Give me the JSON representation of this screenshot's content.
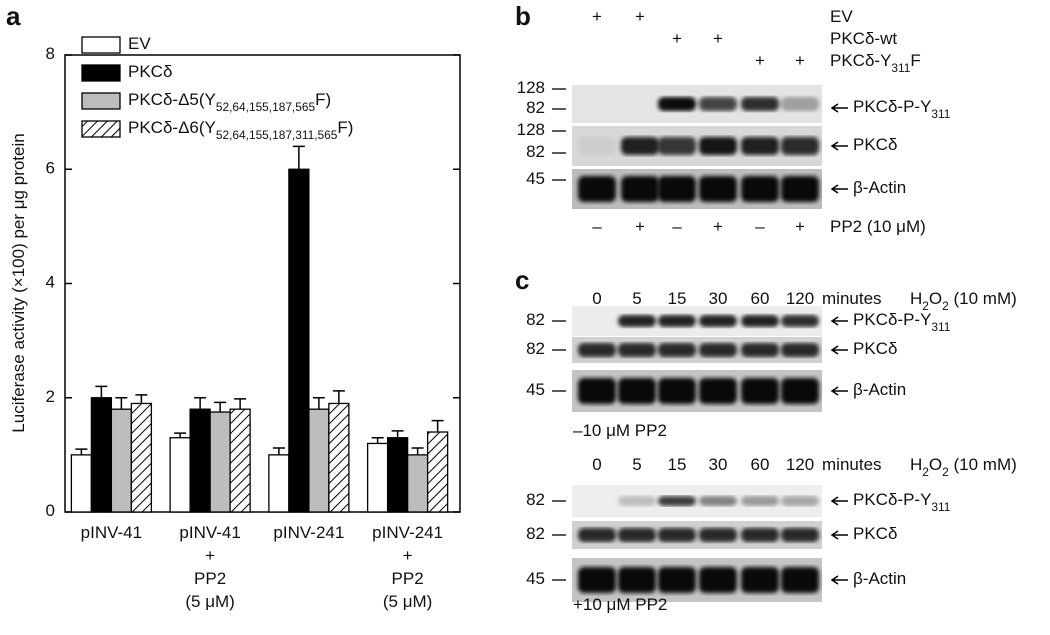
{
  "chart_data": {
    "type": "bar",
    "panel_label": "a",
    "ylabel": "Luciferase activity (×100) per μg protein",
    "categories": [
      "pINV-41",
      "pINV-41\n+\nPP2\n(5 μM)",
      "pINV-241",
      "pINV-241\n+\nPP2\n(5 μM)"
    ],
    "series": [
      {
        "name": "EV",
        "color": "#ffffff",
        "values": [
          1.0,
          1.3,
          1.0,
          1.2
        ],
        "errors": [
          0.1,
          0.08,
          0.12,
          0.1
        ]
      },
      {
        "name": "PKCδ",
        "color": "#000000",
        "values": [
          2.0,
          1.8,
          6.0,
          1.3
        ],
        "errors": [
          0.2,
          0.2,
          0.4,
          0.12
        ]
      },
      {
        "name": "PKCδ-Δ5(Y52,64,155,187,565F)",
        "color": "#bdbdbd",
        "values": [
          1.8,
          1.75,
          1.8,
          1.0
        ],
        "errors": [
          0.2,
          0.17,
          0.2,
          0.12
        ]
      },
      {
        "name": "PKCδ-Δ6(Y52,64,155,187,311,565F)",
        "color": "hatch",
        "values": [
          1.9,
          1.8,
          1.9,
          1.4
        ],
        "errors": [
          0.15,
          0.18,
          0.22,
          0.2
        ]
      }
    ],
    "ylim": [
      0,
      8
    ],
    "yticks": [
      0,
      2,
      4,
      6,
      8
    ],
    "grid": false,
    "legend": "upper left"
  },
  "panel_b": {
    "label": "b",
    "treatments": [
      {
        "name": "EV",
        "signs": [
          "+",
          "+",
          null,
          null,
          null,
          null
        ]
      },
      {
        "name": "PKCδ-wt",
        "signs": [
          null,
          null,
          "+",
          "+",
          null,
          null
        ]
      },
      {
        "name": "PKCδ-Y311F",
        "signs": [
          null,
          null,
          null,
          null,
          "+",
          "+"
        ]
      }
    ],
    "blots": [
      {
        "markers": [
          "128",
          "82"
        ],
        "label": "PKCδ-P-Y311"
      },
      {
        "markers": [
          "128",
          "82"
        ],
        "label": "PKCδ"
      },
      {
        "markers": [
          "45"
        ],
        "label": "β-Actin"
      }
    ],
    "pp2_signs": [
      "–",
      "+",
      "–",
      "+",
      "–",
      "+"
    ],
    "pp2_label": "PP2 (10 μM)"
  },
  "panel_c": {
    "label": "c",
    "blocks": [
      {
        "times": [
          "0",
          "5",
          "15",
          "30",
          "60",
          "120"
        ],
        "time_unit": "minutes",
        "treatment": "H2O2 (10 mM)",
        "blots": [
          {
            "marker": "82",
            "label": "PKCδ-P-Y311"
          },
          {
            "marker": "82",
            "label": "PKCδ"
          },
          {
            "marker": "45",
            "label": "β-Actin"
          }
        ],
        "condition": "–10 μM PP2"
      },
      {
        "times": [
          "0",
          "5",
          "15",
          "30",
          "60",
          "120"
        ],
        "time_unit": "minutes",
        "treatment": "H2O2 (10 mM)",
        "blots": [
          {
            "marker": "82",
            "label": "PKCδ-P-Y311"
          },
          {
            "marker": "82",
            "label": "PKCδ"
          },
          {
            "marker": "45",
            "label": "β-Actin"
          }
        ],
        "condition": "+10 μM PP2"
      }
    ]
  }
}
